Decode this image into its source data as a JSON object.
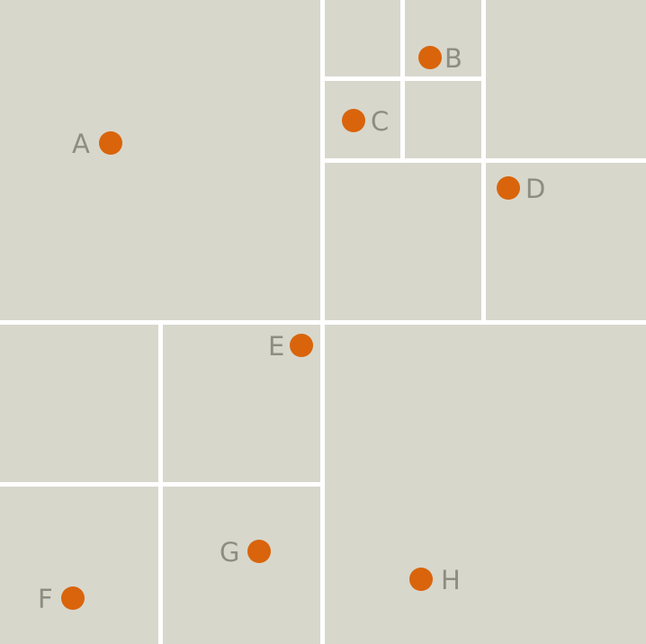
{
  "colors": {
    "cell": "#d8d7cc",
    "divider": "#ffffff",
    "point": "#d9640b",
    "label": "#8d8d82"
  },
  "points": [
    {
      "label": "A"
    },
    {
      "label": "B"
    },
    {
      "label": "C"
    },
    {
      "label": "D"
    },
    {
      "label": "E"
    },
    {
      "label": "F"
    },
    {
      "label": "G"
    },
    {
      "label": "H"
    }
  ]
}
